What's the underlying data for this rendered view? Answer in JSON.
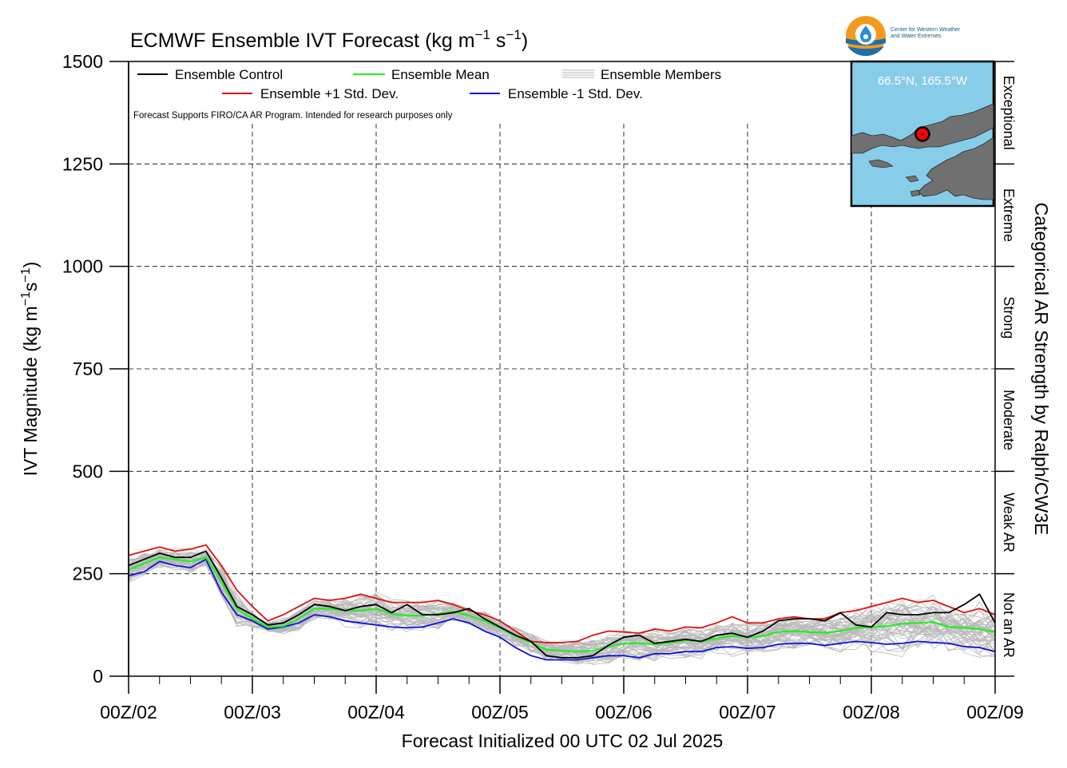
{
  "chart_data": {
    "type": "line",
    "title": "ECMWF Ensemble IVT Forecast (kg m",
    "title_sup1": "−1",
    "title_mid": " s",
    "title_sup2": "−1",
    "title_end": ")",
    "ylabel_main": "IVT Magnitude (kg m",
    "ylabel_sup1": "−1",
    "ylabel_mid": "s",
    "ylabel_sup2": "−1",
    "ylabel_end": ")",
    "xlabel": "Forecast Initialized 00 UTC 02 Jul 2025",
    "right_label": "Categorical AR Strength by Ralph/CW3E",
    "note": "Forecast Supports FIRO/CA AR Program. Intended for research purposes only",
    "ylim": [
      0,
      1500
    ],
    "xlim": [
      0,
      168
    ],
    "y_ticks": [
      0,
      250,
      500,
      750,
      1000,
      1250,
      1500
    ],
    "x_ticks": [
      0,
      24,
      48,
      72,
      96,
      120,
      144,
      168
    ],
    "x_tick_labels": [
      "00Z/02",
      "00Z/03",
      "00Z/04",
      "00Z/05",
      "00Z/06",
      "00Z/07",
      "00Z/08",
      "00Z/09"
    ],
    "grid": true,
    "legend_position": "top-left",
    "categories": [
      {
        "label": "Not an AR",
        "range": [
          0,
          250
        ]
      },
      {
        "label": "Weak AR",
        "range": [
          250,
          500
        ]
      },
      {
        "label": "Moderate",
        "range": [
          500,
          750
        ]
      },
      {
        "label": "Strong",
        "range": [
          750,
          1000
        ]
      },
      {
        "label": "Extreme",
        "range": [
          1000,
          1250
        ]
      },
      {
        "label": "Exceptional",
        "range": [
          1250,
          1500
        ]
      }
    ],
    "x": [
      0,
      3,
      6,
      9,
      12,
      15,
      18,
      21,
      24,
      27,
      30,
      33,
      36,
      39,
      42,
      45,
      48,
      51,
      54,
      57,
      60,
      63,
      66,
      69,
      72,
      75,
      78,
      81,
      84,
      87,
      90,
      93,
      96,
      99,
      102,
      105,
      108,
      111,
      114,
      117,
      120,
      123,
      126,
      129,
      132,
      135,
      138,
      141,
      144,
      147,
      150,
      153,
      156,
      159,
      162,
      165,
      168
    ],
    "series": [
      {
        "name": "Ensemble Control",
        "color": "#000000",
        "values": [
          270,
          285,
          300,
          290,
          290,
          305,
          240,
          170,
          150,
          125,
          130,
          150,
          175,
          170,
          160,
          170,
          175,
          155,
          175,
          150,
          150,
          155,
          165,
          140,
          120,
          100,
          85,
          50,
          45,
          45,
          50,
          75,
          95,
          100,
          80,
          85,
          90,
          85,
          100,
          105,
          95,
          110,
          135,
          140,
          140,
          135,
          155,
          125,
          120,
          155,
          150,
          150,
          155,
          155,
          175,
          200,
          130
        ]
      },
      {
        "name": "Ensemble Mean",
        "color": "#22ee22",
        "values": [
          260,
          275,
          290,
          285,
          280,
          290,
          230,
          165,
          140,
          120,
          122,
          140,
          165,
          165,
          160,
          160,
          165,
          152,
          148,
          148,
          152,
          158,
          148,
          135,
          118,
          98,
          82,
          65,
          62,
          60,
          62,
          72,
          80,
          80,
          78,
          82,
          88,
          85,
          92,
          98,
          95,
          98,
          108,
          110,
          108,
          106,
          110,
          118,
          120,
          122,
          128,
          130,
          132,
          120,
          118,
          115,
          108
        ]
      },
      {
        "name": "Ensemble +1 Std. Dev.",
        "color": "#e01010",
        "values": [
          295,
          305,
          315,
          305,
          310,
          320,
          270,
          210,
          170,
          135,
          150,
          170,
          190,
          185,
          190,
          200,
          190,
          180,
          180,
          180,
          185,
          175,
          160,
          150,
          135,
          110,
          85,
          82,
          82,
          85,
          100,
          110,
          108,
          105,
          115,
          110,
          120,
          118,
          130,
          145,
          130,
          130,
          140,
          145,
          140,
          140,
          155,
          160,
          170,
          180,
          190,
          180,
          185,
          170,
          155,
          165,
          150
        ]
      },
      {
        "name": "Ensemble -1 Std. Dev.",
        "color": "#1010dd",
        "values": [
          245,
          255,
          280,
          270,
          265,
          285,
          205,
          150,
          135,
          115,
          120,
          130,
          150,
          145,
          135,
          130,
          125,
          120,
          118,
          120,
          130,
          140,
          130,
          110,
          95,
          70,
          50,
          40,
          40,
          40,
          45,
          50,
          50,
          45,
          55,
          55,
          60,
          60,
          70,
          72,
          68,
          70,
          78,
          80,
          80,
          75,
          80,
          85,
          82,
          78,
          80,
          85,
          82,
          80,
          72,
          70,
          60
        ]
      }
    ],
    "members_label": "Ensemble Members",
    "members_color": "#b8b8b8",
    "inset_location": "66.5°N, 165.5°W",
    "colors": {
      "ocean": "#87cdea",
      "land": "#707070",
      "marker": "#ff0000"
    }
  },
  "logo": {
    "line1": "Center for Western Weather",
    "line2": "and Water Extremes"
  }
}
